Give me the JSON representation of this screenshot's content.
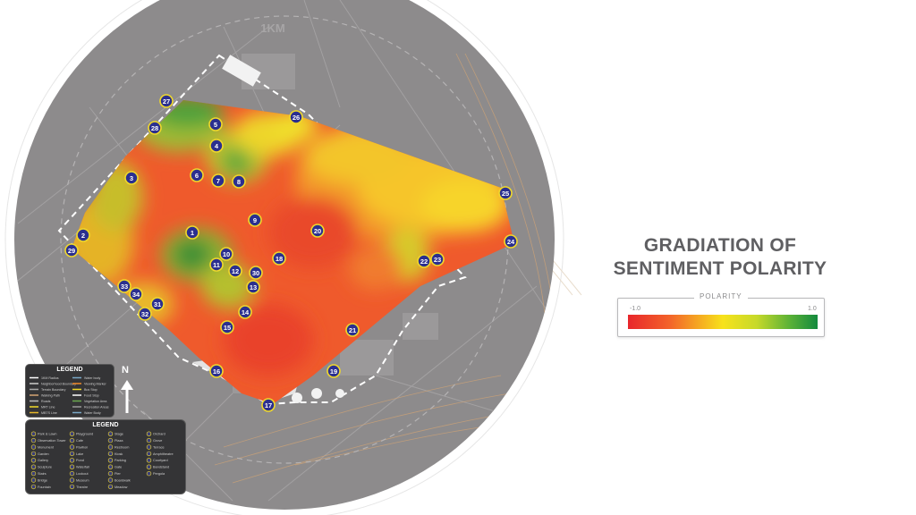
{
  "map": {
    "scale_label": "1KM",
    "markers": [
      {
        "id": "27"
      },
      {
        "id": "28"
      },
      {
        "id": "5"
      },
      {
        "id": "4"
      },
      {
        "id": "26"
      },
      {
        "id": "3"
      },
      {
        "id": "6"
      },
      {
        "id": "7"
      },
      {
        "id": "8"
      },
      {
        "id": "25"
      },
      {
        "id": "9"
      },
      {
        "id": "20"
      },
      {
        "id": "2"
      },
      {
        "id": "1"
      },
      {
        "id": "24"
      },
      {
        "id": "29"
      },
      {
        "id": "10"
      },
      {
        "id": "11"
      },
      {
        "id": "12"
      },
      {
        "id": "18"
      },
      {
        "id": "22"
      },
      {
        "id": "23"
      },
      {
        "id": "30"
      },
      {
        "id": "33"
      },
      {
        "id": "13"
      },
      {
        "id": "34"
      },
      {
        "id": "31"
      },
      {
        "id": "32"
      },
      {
        "id": "14"
      },
      {
        "id": "15"
      },
      {
        "id": "21"
      },
      {
        "id": "16"
      },
      {
        "id": "19"
      },
      {
        "id": "17"
      }
    ]
  },
  "title": {
    "line1": "GRADIATION OF",
    "line2": "SENTIMENT POLARITY"
  },
  "polarity": {
    "label": "POLARITY",
    "min": "-1.0",
    "max": "1.0",
    "colors": [
      "#e8262b",
      "#f3632a",
      "#f7e21b",
      "#5cb236",
      "#138a3e"
    ]
  },
  "north": {
    "label": "N"
  },
  "legend_small": {
    "title": "LEGEND",
    "items": [
      "1KM Radius",
      "Neighborhood Boundary",
      "Terrain Boundary",
      "Walking Path",
      "Roads",
      "MRT Line",
      "MBTS Line",
      "Water body",
      "Viewing Marker",
      "Bus Stop",
      "Food Stop",
      "Vegetation Area",
      "Recreation Areas",
      "Water Body"
    ]
  },
  "legend_big": {
    "title": "LEGEND",
    "items": [
      "Park & Lawn",
      "Observation Tower",
      "Monument",
      "Garden",
      "Gallery",
      "Sculpture",
      "Stairs",
      "Bridge",
      "Fountain",
      "Playground",
      "Cafe",
      "Pavilion",
      "Lake",
      "Pond",
      "Waterfall",
      "Lookout",
      "Museum",
      "Theatre",
      "Stage",
      "Plaza",
      "Restroom",
      "Kiosk",
      "Parking",
      "Gate",
      "Pier",
      "Boardwalk",
      "Meadow",
      "Orchard",
      "Grove",
      "Terrace",
      "Amphitheatre",
      "Courtyard",
      "Bandstand",
      "Pergola"
    ]
  },
  "colors": {
    "disc": "#8d8b8c",
    "marker_fill": "#2b2f8f",
    "marker_ring": "#f0d92a",
    "panel": "#343436"
  }
}
